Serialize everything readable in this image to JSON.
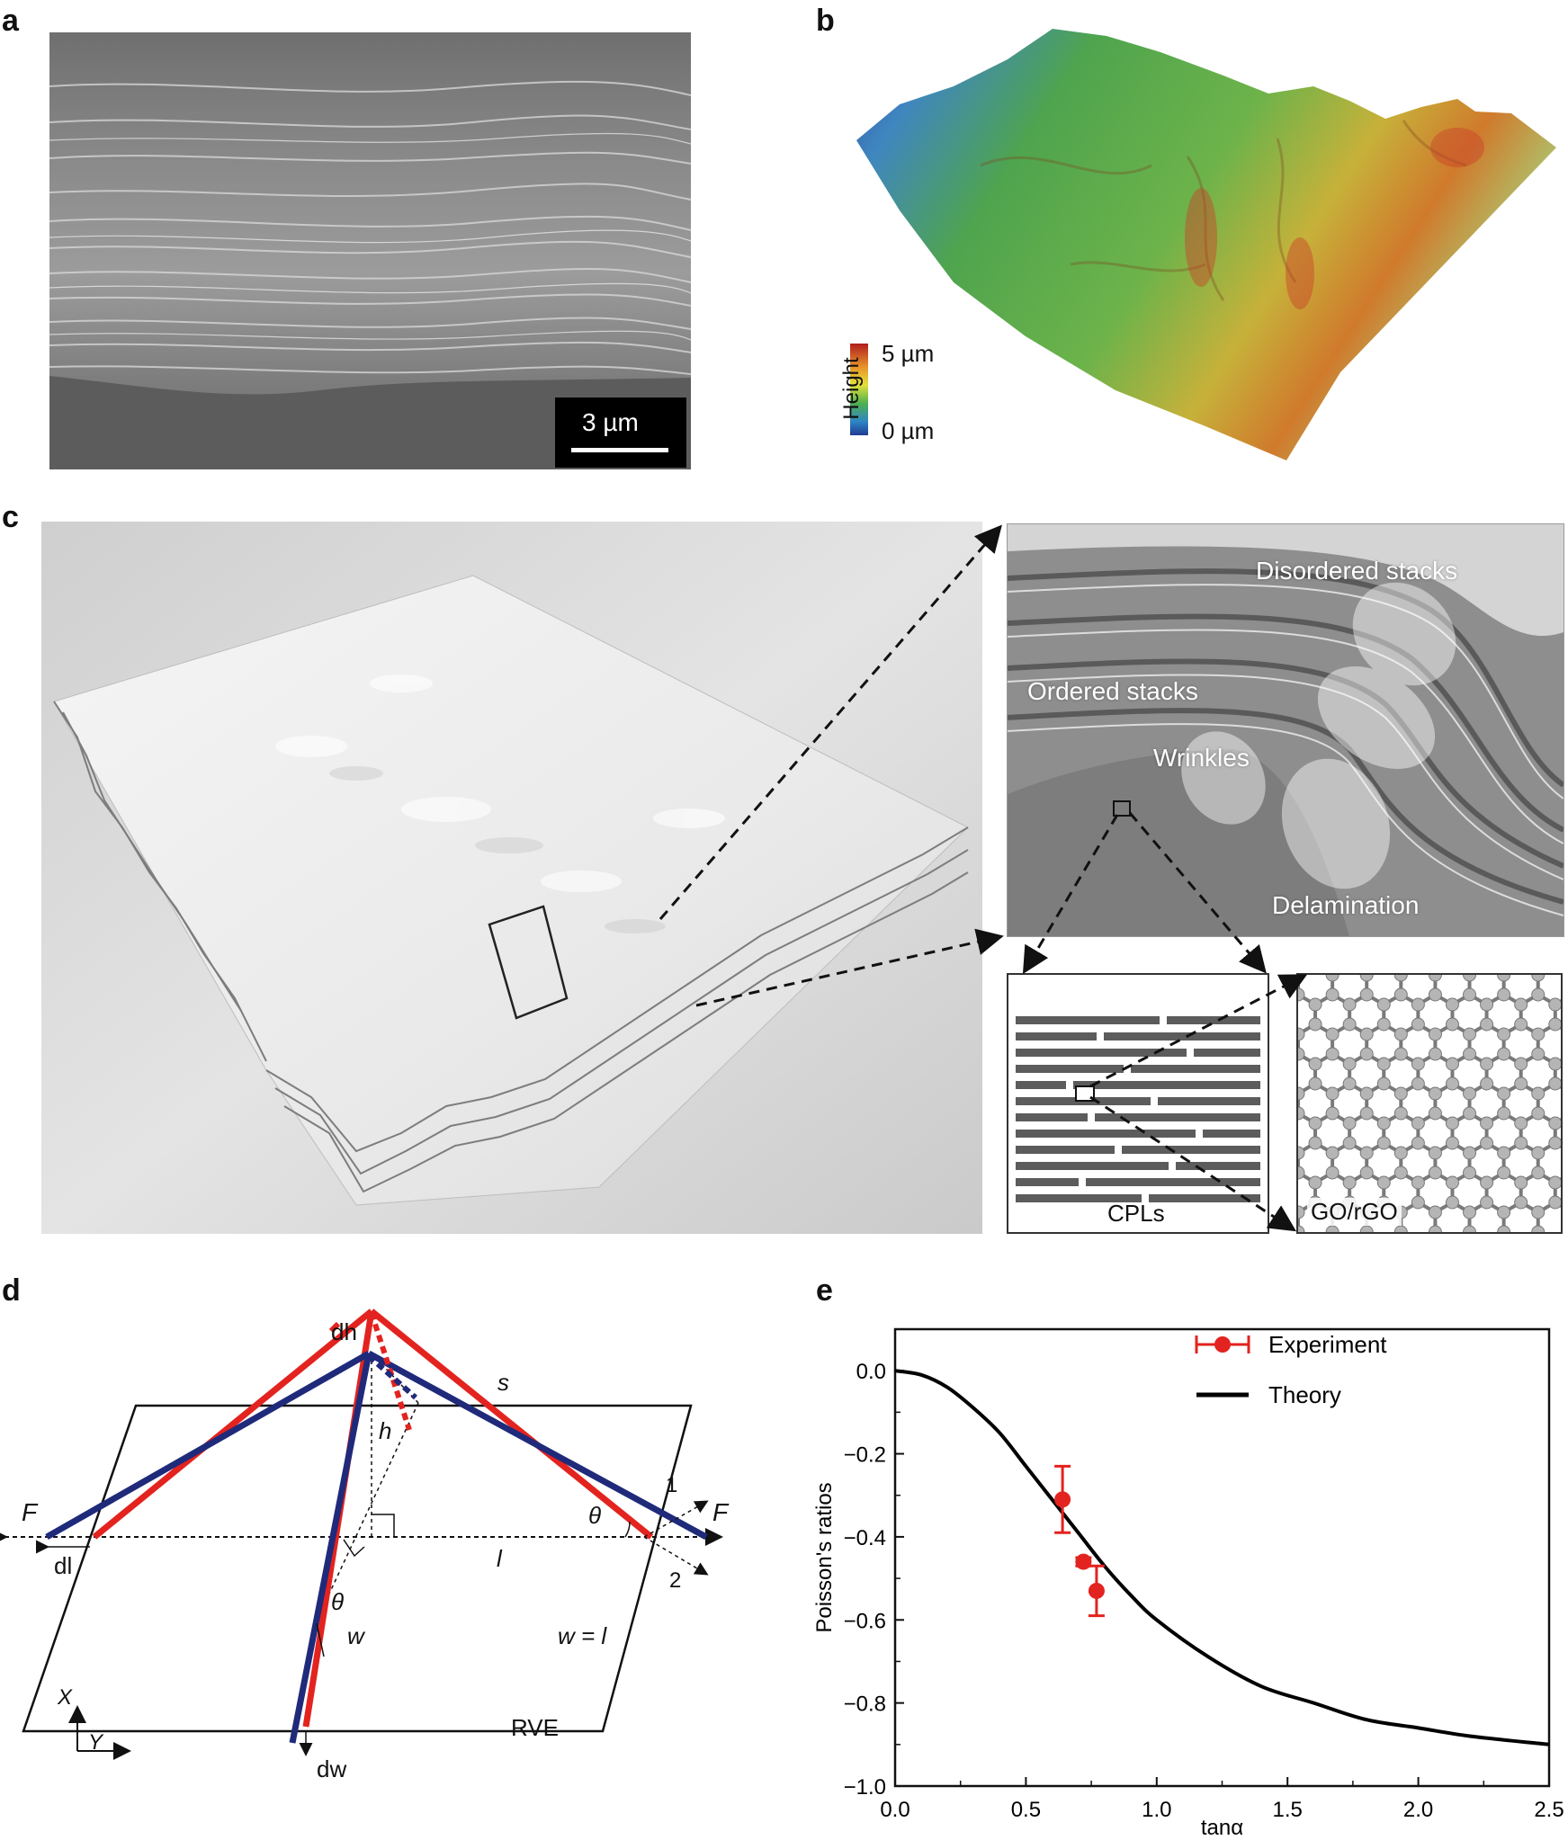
{
  "panels": {
    "a": {
      "letter": "a",
      "scalebar": "3 µm"
    },
    "b": {
      "letter": "b",
      "colorbar_title": "Height",
      "colorbar_max": "5 µm",
      "colorbar_min": "0 µm"
    },
    "c": {
      "letter": "c",
      "labels": {
        "disordered": "Disordered stacks",
        "ordered": "Ordered stacks",
        "wrinkles": "Wrinkles",
        "delamination": "Delamination",
        "cpls": "CPLs",
        "go": "GO/rGO"
      }
    },
    "d": {
      "letter": "d",
      "labels": {
        "dh": "dh",
        "s": "s",
        "h": "h",
        "F_left": "F",
        "F_right": "F",
        "dl": "dl",
        "l": "l",
        "theta1": "θ",
        "theta2": "θ",
        "w": "w",
        "w_eq": "w = l",
        "one": "1",
        "two": "2",
        "X": "X",
        "Y": "Y",
        "RVE": "RVE",
        "dw": "dw"
      }
    },
    "e": {
      "letter": "e"
    }
  },
  "colors": {
    "experiment": "#e3231f",
    "theory": "#000000",
    "red_line": "#e3231f",
    "blue_line": "#1f2a7a"
  },
  "chart_data": {
    "type": "scatter",
    "xlabel": "tanα",
    "ylabel": "Poisson's ratios",
    "xlim": [
      0,
      2.5
    ],
    "ylim": [
      -1.0,
      0.1
    ],
    "xticks": [
      "0.0",
      "0.5",
      "1.0",
      "1.5",
      "2.0",
      "2.5"
    ],
    "yticks": [
      "0.0",
      "−0.2",
      "−0.4",
      "−0.6",
      "−0.8",
      "−1.0"
    ],
    "legend_position": "top-right",
    "series": [
      {
        "name": "Experiment",
        "x": [
          0.64,
          0.72,
          0.77
        ],
        "y": [
          -0.31,
          -0.46,
          -0.53
        ],
        "xerr": [
          0.01,
          0.01,
          0.03
        ],
        "yerr": [
          0.08,
          0.01,
          0.06
        ]
      },
      {
        "name": "Theory",
        "x": [
          0,
          0.1,
          0.2,
          0.3,
          0.4,
          0.5,
          0.6,
          0.7,
          0.8,
          0.9,
          1.0,
          1.2,
          1.4,
          1.6,
          1.8,
          2.0,
          2.2,
          2.5
        ],
        "y": [
          0,
          -0.01,
          -0.04,
          -0.09,
          -0.15,
          -0.23,
          -0.31,
          -0.39,
          -0.47,
          -0.54,
          -0.6,
          -0.69,
          -0.76,
          -0.8,
          -0.84,
          -0.86,
          -0.88,
          -0.9
        ]
      }
    ]
  }
}
